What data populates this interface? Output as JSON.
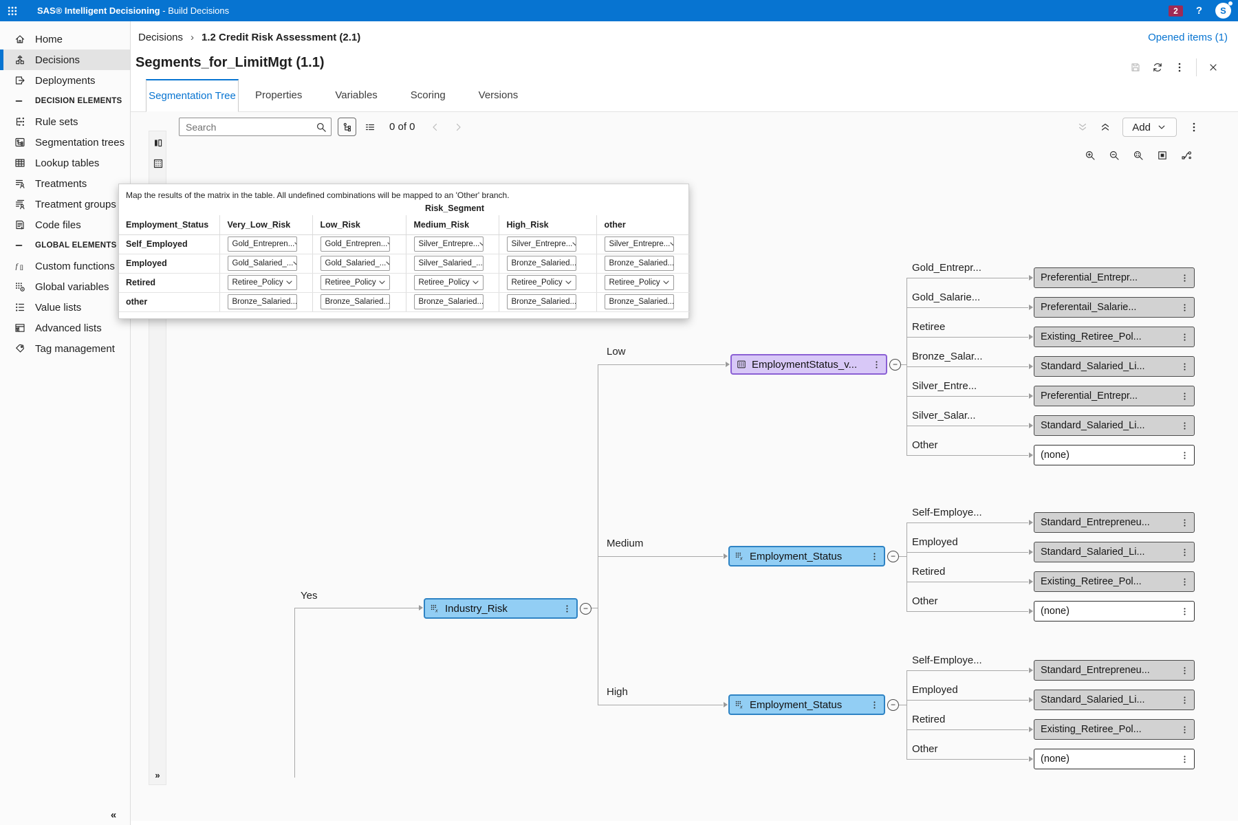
{
  "colors": {
    "accent": "#0774d1",
    "topbar": "#0774d1",
    "badge": "#9f2a54",
    "canvas_bg": "#fafafa",
    "connector": "#a8a8a8",
    "node_blue_fill": "#92cef4",
    "node_blue_border": "#2e83c4",
    "node_purple_fill": "#d8c8f7",
    "node_purple_border": "#8a5fd4",
    "leaf_fill": "#d2d2d2",
    "leaf_border": "#4a4a4a"
  },
  "app_bar": {
    "product": "SAS® Intelligent Decisioning",
    "separator": "-",
    "section": "Build Decisions",
    "notification_count": "2",
    "help_label": "?",
    "avatar_initial": "S"
  },
  "sidebar": {
    "items": [
      {
        "type": "item",
        "icon": "home",
        "label": "Home"
      },
      {
        "type": "item",
        "icon": "decisions",
        "label": "Decisions",
        "selected": true
      },
      {
        "type": "item",
        "icon": "deployments",
        "label": "Deployments"
      },
      {
        "type": "section",
        "icon": "section-dash",
        "label": "DECISION ELEMENTS"
      },
      {
        "type": "item",
        "icon": "rule-sets",
        "label": "Rule sets"
      },
      {
        "type": "item",
        "icon": "segmentation-trees",
        "label": "Segmentation trees"
      },
      {
        "type": "item",
        "icon": "lookup-tables",
        "label": "Lookup tables"
      },
      {
        "type": "item",
        "icon": "treatments",
        "label": "Treatments"
      },
      {
        "type": "item",
        "icon": "treatment-groups",
        "label": "Treatment groups"
      },
      {
        "type": "item",
        "icon": "code-files",
        "label": "Code files"
      },
      {
        "type": "section",
        "icon": "section-dash",
        "label": "GLOBAL ELEMENTS"
      },
      {
        "type": "item",
        "icon": "custom-functions",
        "label": "Custom functions"
      },
      {
        "type": "item",
        "icon": "global-variables",
        "label": "Global variables"
      },
      {
        "type": "item",
        "icon": "value-lists",
        "label": "Value lists"
      },
      {
        "type": "item",
        "icon": "advanced-lists",
        "label": "Advanced lists"
      },
      {
        "type": "item",
        "icon": "tag-management",
        "label": "Tag management"
      }
    ],
    "collapse_label": "«"
  },
  "breadcrumb": {
    "root": "Decisions",
    "separator": "›",
    "current": "1.2 Credit Risk Assessment (2.1)",
    "opened_items": "Opened items (1)"
  },
  "page": {
    "title": "Segments_for_LimitMgt (1.1)"
  },
  "tabs": [
    {
      "label": "Segmentation Tree",
      "active": true
    },
    {
      "label": "Properties",
      "active": false
    },
    {
      "label": "Variables",
      "active": false
    },
    {
      "label": "Scoring",
      "active": false
    },
    {
      "label": "Versions",
      "active": false
    }
  ],
  "toolbar": {
    "search_placeholder": "Search",
    "match_count": "0 of 0",
    "add_label": "Add"
  },
  "panel": {
    "expand_label": "»"
  },
  "matrix": {
    "instruction": "Map the results of the matrix in the table. All undefined combinations will be mapped to an 'Other' branch.",
    "group_header": "Risk_Segment",
    "row_header": "Employment_Status",
    "columns": [
      "Very_Low_Risk",
      "Low_Risk",
      "Medium_Risk",
      "High_Risk",
      "other"
    ],
    "rows": [
      {
        "label": "Self_Employed",
        "values": [
          "Gold_Entrepren...",
          "Gold_Entrepren...",
          "Silver_Entrepre...",
          "Silver_Entrepre...",
          "Silver_Entrepre..."
        ]
      },
      {
        "label": "Employed",
        "values": [
          "Gold_Salaried_...",
          "Gold_Salaried_...",
          "Silver_Salaried_...",
          "Bronze_Salaried...",
          "Bronze_Salaried..."
        ]
      },
      {
        "label": "Retired",
        "values": [
          "Retiree_Policy",
          "Retiree_Policy",
          "Retiree_Policy",
          "Retiree_Policy",
          "Retiree_Policy"
        ]
      },
      {
        "label": "other",
        "values": [
          "Bronze_Salaried...",
          "Bronze_Salaried...",
          "Bronze_Salaried...",
          "Bronze_Salaried...",
          "Bronze_Salaried..."
        ]
      }
    ]
  },
  "tree": {
    "root_branch_label": "Yes",
    "root_node": {
      "label": "Industry_Risk",
      "type": "variable"
    },
    "branches": [
      {
        "label": "Low",
        "node": {
          "label": "EmploymentStatus_v...",
          "type": "table"
        },
        "leaves": [
          {
            "branch": "Gold_Entrepr...",
            "result": "Preferential_Entrepr...",
            "none": false
          },
          {
            "branch": "Gold_Salarie...",
            "result": "Preferentail_Salarie...",
            "none": false
          },
          {
            "branch": "Retiree",
            "result": "Existing_Retiree_Pol...",
            "none": false
          },
          {
            "branch": "Bronze_Salar...",
            "result": "Standard_Salaried_Li...",
            "none": false
          },
          {
            "branch": "Silver_Entre...",
            "result": "Preferential_Entrepr...",
            "none": false
          },
          {
            "branch": "Silver_Salar...",
            "result": "Standard_Salaried_Li...",
            "none": false
          },
          {
            "branch": "Other",
            "result": "(none)",
            "none": true
          }
        ]
      },
      {
        "label": "Medium",
        "node": {
          "label": "Employment_Status",
          "type": "variable"
        },
        "leaves": [
          {
            "branch": "Self-Employe...",
            "result": "Standard_Entrepreneu...",
            "none": false
          },
          {
            "branch": "Employed",
            "result": "Standard_Salaried_Li...",
            "none": false
          },
          {
            "branch": "Retired",
            "result": "Existing_Retiree_Pol...",
            "none": false
          },
          {
            "branch": "Other",
            "result": "(none)",
            "none": true
          }
        ]
      },
      {
        "label": "High",
        "node": {
          "label": "Employment_Status",
          "type": "variable"
        },
        "leaves": [
          {
            "branch": "Self-Employe...",
            "result": "Standard_Entrepreneu...",
            "none": false
          },
          {
            "branch": "Employed",
            "result": "Standard_Salaried_Li...",
            "none": false
          },
          {
            "branch": "Retired",
            "result": "Existing_Retiree_Pol...",
            "none": false
          },
          {
            "branch": "Other",
            "result": "(none)",
            "none": true
          }
        ]
      }
    ]
  }
}
